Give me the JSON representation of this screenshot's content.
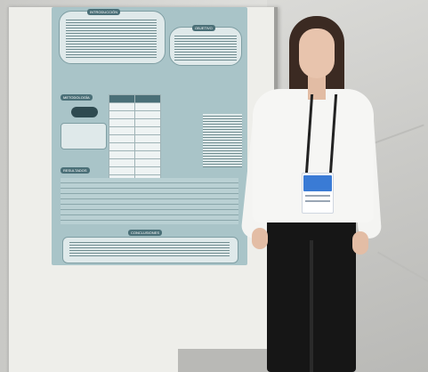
{
  "scene": {
    "description_colors": {
      "poster_bg": "#a9c4c8",
      "poster_header": "#4a6f77",
      "badge_blue": "#3a7bd5",
      "shirt": "#f6f6f4",
      "pants": "#161616"
    }
  },
  "poster": {
    "sections": [
      "INTRODUCCIÓN",
      "OBJETIVO",
      "METODOLOGÍA",
      "RESULTADOS",
      "CONCLUSIONES"
    ]
  }
}
